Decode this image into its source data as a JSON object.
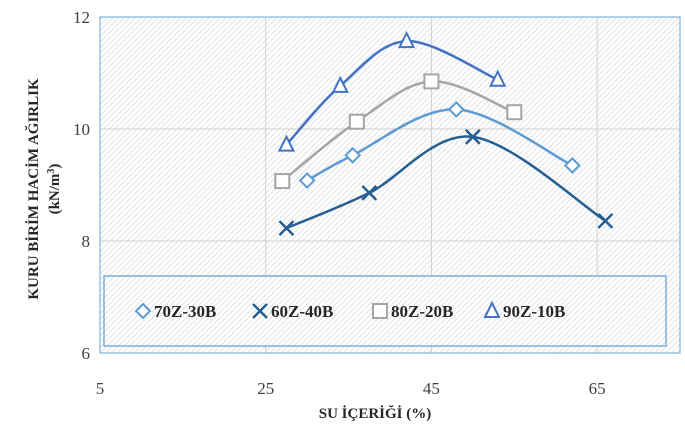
{
  "chart_data": {
    "type": "scatter",
    "xlabel": "SU İÇERİĞİ (%)",
    "ylabel_line1": "KURU BİRİM HACİM AĞIRLIK",
    "ylabel_line2": "(kN/m",
    "ylabel_sup": "3",
    "ylabel_close": ")",
    "xlim": [
      5,
      75
    ],
    "ylim": [
      6,
      12
    ],
    "x_ticks": [
      5,
      25,
      45,
      65
    ],
    "y_ticks": [
      6,
      8,
      10,
      12
    ],
    "grid": true,
    "background_pattern": "diagonal-hatch",
    "legend_position": "bottom-inside",
    "series": [
      {
        "name": "70Z-30B",
        "marker": "diamond",
        "color": "#5b9bd5",
        "x": [
          30,
          35.5,
          48,
          62
        ],
        "y": [
          9.08,
          9.53,
          10.35,
          9.35
        ]
      },
      {
        "name": "60Z-40B",
        "marker": "x",
        "color": "#255e91",
        "x": [
          27.5,
          37.5,
          50,
          66
        ],
        "y": [
          8.23,
          8.86,
          9.86,
          8.36
        ]
      },
      {
        "name": "80Z-20B",
        "marker": "square",
        "color": "#a5a5a5",
        "x": [
          27,
          36,
          45,
          55
        ],
        "y": [
          9.07,
          10.13,
          10.85,
          10.3
        ]
      },
      {
        "name": "90Z-10B",
        "marker": "triangle",
        "color": "#4472c4",
        "x": [
          27.5,
          34,
          42,
          53
        ],
        "y": [
          9.72,
          10.77,
          11.57,
          10.88
        ]
      }
    ]
  }
}
